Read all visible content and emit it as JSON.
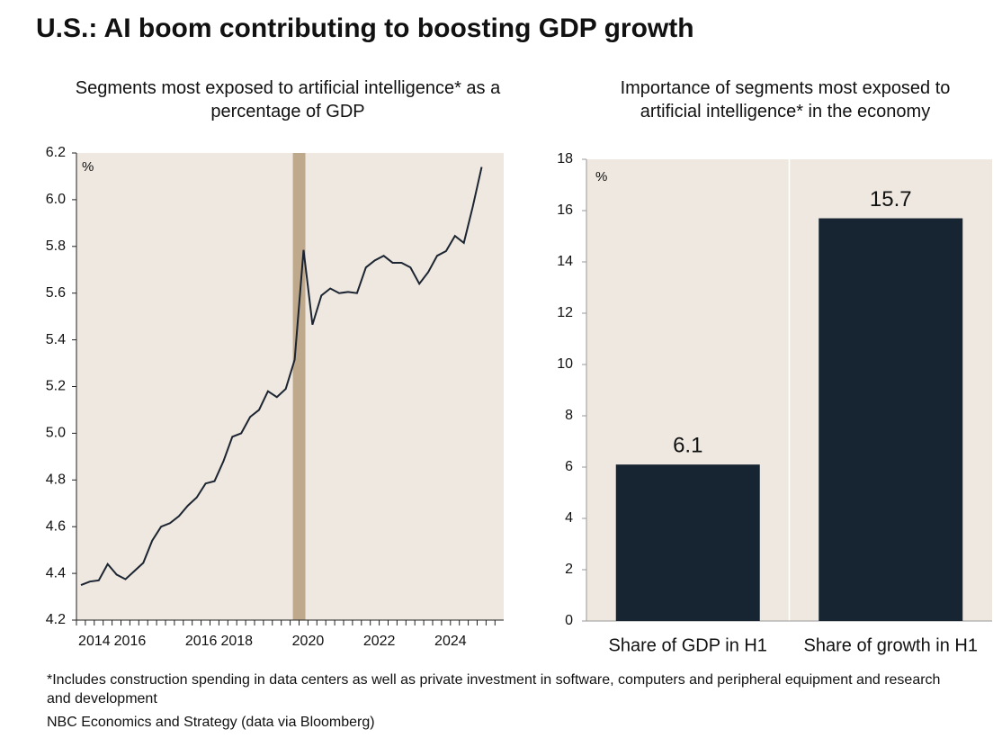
{
  "title": "U.S.: AI boom contributing to boosting GDP growth",
  "chart_data": [
    {
      "type": "line",
      "title": "Segments most exposed to artificial intelligence* as a percentage of GDP",
      "y_unit": "%",
      "categories": [
        "2014",
        null,
        null,
        null,
        "2016",
        null,
        null,
        null,
        null,
        null,
        null,
        null,
        "2016",
        null,
        null,
        null,
        "2018",
        null,
        null,
        null,
        null,
        null,
        null,
        null,
        "2020",
        null,
        null,
        null,
        null,
        null,
        null,
        null,
        "2022",
        null,
        null,
        null,
        null,
        null,
        null,
        null,
        "2024",
        null,
        null,
        null,
        null,
        null
      ],
      "values": [
        4.35,
        4.365,
        4.37,
        4.44,
        4.395,
        4.375,
        4.41,
        4.445,
        4.54,
        4.6,
        4.615,
        4.645,
        4.69,
        4.725,
        4.785,
        4.795,
        4.88,
        4.985,
        5.0,
        5.07,
        5.1,
        5.18,
        5.155,
        5.19,
        5.315,
        5.785,
        5.465,
        5.59,
        5.62,
        5.6,
        5.605,
        5.6,
        5.71,
        5.74,
        5.76,
        5.73,
        5.73,
        5.71,
        5.64,
        5.69,
        5.76,
        5.78,
        5.845,
        5.815,
        5.97,
        6.14
      ],
      "color": "#1b2430",
      "highlight": {
        "start": 24,
        "end": 25,
        "color": "#bfa98d"
      },
      "ylim": [
        4.2,
        6.2
      ],
      "yticks": [
        4.2,
        4.4,
        4.6,
        4.8,
        {
          "value": 5,
          "label": "5.0"
        },
        5.2,
        5.4,
        5.6,
        5.8,
        {
          "value": 6,
          "label": "6.0"
        },
        6.2
      ]
    },
    {
      "type": "bar",
      "title": "Importance of segments most exposed to artificial intelligence* in the economy",
      "y_unit": "%",
      "categories": [
        "Share of GDP in H1",
        "Share of growth in H1"
      ],
      "values": [
        6.1,
        15.7
      ],
      "color": "#172532",
      "ylim": [
        0,
        18
      ],
      "yticks": [
        0,
        2,
        4,
        6,
        8,
        10,
        12,
        14,
        16,
        18
      ]
    }
  ],
  "footnote": "*Includes construction spending in data centers as well as private investment in software, computers and peripheral equipment and research and development",
  "source": "NBC Economics and Strategy (data via Bloomberg)"
}
